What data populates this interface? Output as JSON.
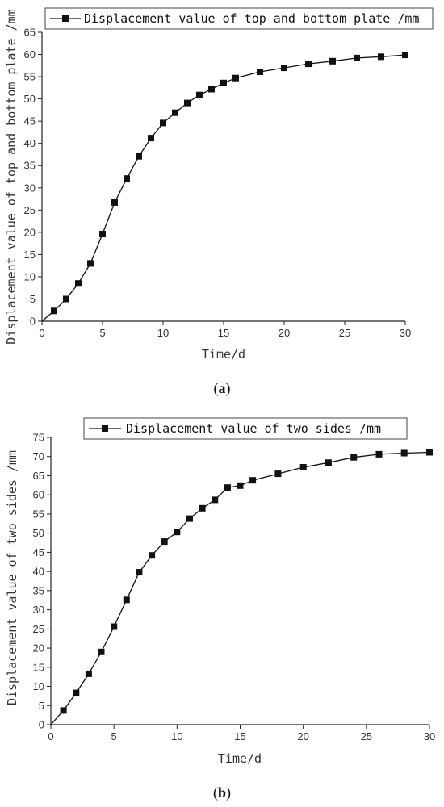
{
  "chart_data": [
    {
      "type": "line",
      "caption_letter": "a",
      "xlabel": "Time/d",
      "ylabel": "Displacement value of top and bottom plate /mm",
      "xlim": [
        0,
        30
      ],
      "ylim": [
        0,
        65
      ],
      "xticks": [
        0,
        5,
        10,
        15,
        20,
        25,
        30
      ],
      "yticks": [
        0,
        5,
        10,
        15,
        20,
        25,
        30,
        35,
        40,
        45,
        50,
        55,
        60,
        65
      ],
      "grid": false,
      "legend_position": "top",
      "series": [
        {
          "name": "Displacement value of top and bottom plate /mm",
          "marker": "square",
          "x": [
            0,
            1,
            2,
            3,
            4,
            5,
            6,
            7,
            8,
            9,
            10,
            11,
            12,
            13,
            14,
            15,
            16,
            18,
            20,
            22,
            24,
            26,
            28,
            30
          ],
          "y": [
            0,
            2.3,
            5,
            8.5,
            13,
            19.6,
            26.7,
            32.1,
            37.1,
            41.2,
            44.6,
            46.9,
            49.1,
            50.9,
            52.2,
            53.6,
            54.7,
            56.1,
            57,
            57.9,
            58.5,
            59.2,
            59.5,
            59.9
          ]
        }
      ]
    },
    {
      "type": "line",
      "caption_letter": "b",
      "xlabel": "Time/d",
      "ylabel": "Displacement value of two sides /mm",
      "xlim": [
        0,
        30
      ],
      "ylim": [
        0,
        75
      ],
      "xticks": [
        0,
        5,
        10,
        15,
        20,
        25,
        30
      ],
      "yticks": [
        0,
        5,
        10,
        15,
        20,
        25,
        30,
        35,
        40,
        45,
        50,
        55,
        60,
        65,
        70,
        75
      ],
      "grid": false,
      "legend_position": "top-right",
      "series": [
        {
          "name": "Displacement value of two sides /mm",
          "marker": "square",
          "x": [
            0,
            1,
            2,
            3,
            4,
            5,
            6,
            7,
            8,
            9,
            10,
            11,
            12,
            13,
            14,
            15,
            16,
            18,
            20,
            22,
            24,
            26,
            28,
            30
          ],
          "y": [
            0,
            3.7,
            8.3,
            13.3,
            19,
            25.6,
            32.6,
            39.8,
            44.2,
            47.8,
            50.3,
            53.8,
            56.5,
            58.7,
            61.9,
            62.4,
            63.8,
            65.5,
            67.2,
            68.4,
            69.8,
            70.6,
            70.9,
            71.1
          ]
        }
      ]
    }
  ]
}
